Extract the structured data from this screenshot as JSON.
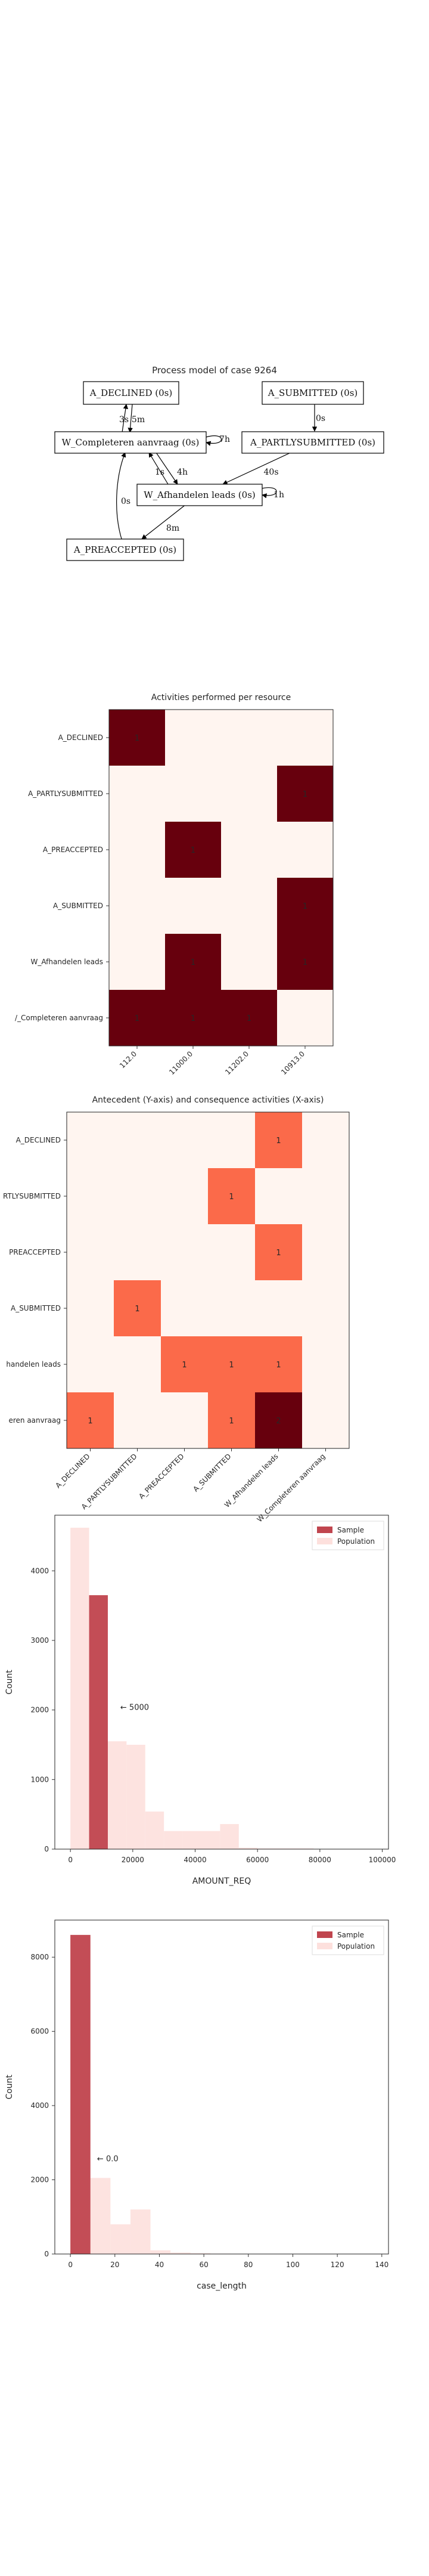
{
  "process_model": {
    "title": "Process model of case 9264",
    "nodes": [
      {
        "id": "declined",
        "label": "A_DECLINED (0s)"
      },
      {
        "id": "submitted",
        "label": "A_SUBMITTED (0s)"
      },
      {
        "id": "completeren",
        "label": "W_Completeren aanvraag (0s)"
      },
      {
        "id": "partly",
        "label": "A_PARTLYSUBMITTED (0s)"
      },
      {
        "id": "afhandelen",
        "label": "W_Afhandelen leads (0s)"
      },
      {
        "id": "preaccepted",
        "label": "A_PREACCEPTED (0s)"
      }
    ],
    "edges": [
      {
        "from": "completeren",
        "to": "declined",
        "label": "3s"
      },
      {
        "from": "declined",
        "to": "completeren",
        "label": "5m"
      },
      {
        "from": "completeren",
        "to": "completeren",
        "label": "7h"
      },
      {
        "from": "submitted",
        "to": "partly",
        "label": "0s"
      },
      {
        "from": "afhandelen",
        "to": "completeren",
        "label": "1s"
      },
      {
        "from": "completeren",
        "to": "afhandelen",
        "label": "4h"
      },
      {
        "from": "partly",
        "to": "afhandelen",
        "label": "40s"
      },
      {
        "from": "afhandelen",
        "to": "afhandelen",
        "label": "1h"
      },
      {
        "from": "preaccepted",
        "to": "completeren",
        "label": "0s"
      },
      {
        "from": "afhandelen",
        "to": "preaccepted",
        "label": "8m"
      }
    ]
  },
  "chart_data": [
    {
      "type": "heatmap",
      "title": "Activities performed per resource",
      "rows": [
        "A_DECLINED",
        "A_PARTLYSUBMITTED",
        "A_PREACCEPTED",
        "A_SUBMITTED",
        "W_Afhandelen leads",
        "W_Completeren aanvraag"
      ],
      "row_labels_visible": [
        "A_DECLINED",
        "A_PARTLYSUBMITTED",
        "A_PREACCEPTED",
        "A_SUBMITTED",
        "W_Afhandelen leads",
        "/_Completeren aanvraag"
      ],
      "columns": [
        "112.0",
        "11000.0",
        "11202.0",
        "10913.0"
      ],
      "values": [
        [
          1,
          0,
          0,
          0
        ],
        [
          0,
          0,
          0,
          1
        ],
        [
          0,
          1,
          0,
          0
        ],
        [
          0,
          0,
          0,
          1
        ],
        [
          0,
          1,
          0,
          1
        ],
        [
          1,
          1,
          1,
          0
        ]
      ],
      "colors": {
        "low": "#fff5f0",
        "mid": "#fb6a4a",
        "high": "#67000d"
      }
    },
    {
      "type": "heatmap",
      "title": "Antecedent (Y-axis) and consequence activities (X-axis)",
      "rows": [
        "A_DECLINED",
        "A_PARTLYSUBMITTED",
        "A_PREACCEPTED",
        "A_SUBMITTED",
        "W_Afhandelen leads",
        "W_Completeren aanvraag"
      ],
      "row_labels_visible": [
        "A_DECLINED",
        "RTLYSUBMITTED",
        "PREACCEPTED",
        "A_SUBMITTED",
        "handelen leads",
        "eren aanvraag"
      ],
      "columns": [
        "A_DECLINED",
        "A_PARTLYSUBMITTED",
        "A_PREACCEPTED",
        "A_SUBMITTED",
        "W_Afhandelen leads",
        "W_Completeren aanvraag"
      ],
      "column_labels_visible": [
        "A_DECLINED",
        "A_PARTLYSUBMITTED",
        "A_PREACCEPTED",
        "A_SUBMITTED",
        "W_Afhandelen leads",
        "W_Completeren aanvraag"
      ],
      "values": [
        [
          0,
          0,
          0,
          0,
          1,
          0
        ],
        [
          0,
          0,
          0,
          1,
          0,
          0
        ],
        [
          0,
          0,
          0,
          0,
          1,
          0
        ],
        [
          0,
          1,
          0,
          0,
          0,
          0
        ],
        [
          0,
          0,
          1,
          1,
          1,
          0
        ],
        [
          1,
          0,
          0,
          1,
          2,
          0
        ]
      ],
      "colors": {
        "low": "#fff5f0",
        "mid": "#fb6a4a",
        "high": "#67000d"
      }
    },
    {
      "type": "bar",
      "xlabel": "AMOUNT_REQ",
      "ylabel": "Count",
      "xlim": [
        -5000,
        102000
      ],
      "ylim": [
        0,
        4800
      ],
      "xticks": [
        0,
        20000,
        40000,
        60000,
        80000,
        100000
      ],
      "yticks": [
        0,
        1000,
        2000,
        3000,
        4000
      ],
      "legend": {
        "position": "top-right",
        "items": [
          "Sample",
          "Population"
        ]
      },
      "annotation": {
        "text": "← 5000",
        "x": 16000,
        "y": 2000
      },
      "series": [
        {
          "name": "Population",
          "color": "#fde0dd",
          "bins": [
            [
              0,
              6000,
              4620
            ],
            [
              6000,
              12000,
              3650
            ],
            [
              12000,
              18000,
              1550
            ],
            [
              18000,
              24000,
              1500
            ],
            [
              24000,
              30000,
              540
            ],
            [
              30000,
              36000,
              260
            ],
            [
              36000,
              42000,
              260
            ],
            [
              42000,
              48000,
              260
            ],
            [
              48000,
              54000,
              360
            ],
            [
              54000,
              60000,
              20
            ],
            [
              60000,
              66000,
              10
            ],
            [
              66000,
              72000,
              10
            ],
            [
              72000,
              78000,
              10
            ]
          ]
        },
        {
          "name": "Sample",
          "color": "#c0454e",
          "bins": [
            [
              6000,
              12000,
              3650
            ]
          ]
        }
      ]
    },
    {
      "type": "bar",
      "xlabel": "case_length",
      "ylabel": "Count",
      "xlim": [
        -7,
        143
      ],
      "ylim": [
        0,
        9000
      ],
      "xticks": [
        0,
        20,
        40,
        60,
        80,
        100,
        120,
        140
      ],
      "yticks": [
        0,
        2000,
        4000,
        6000,
        8000
      ],
      "legend": {
        "position": "top-right",
        "items": [
          "Sample",
          "Population"
        ]
      },
      "annotation": {
        "text": "← 0.0",
        "x": 12,
        "y": 2500
      },
      "series": [
        {
          "name": "Population",
          "color": "#fde0dd",
          "bins": [
            [
              0,
              9,
              8600
            ],
            [
              9,
              18,
              2050
            ],
            [
              18,
              27,
              800
            ],
            [
              27,
              36,
              1200
            ],
            [
              36,
              45,
              100
            ],
            [
              45,
              54,
              40
            ],
            [
              54,
              63,
              20
            ],
            [
              63,
              72,
              10
            ]
          ]
        },
        {
          "name": "Sample",
          "color": "#c0454e",
          "bins": [
            [
              0,
              9,
              8600
            ]
          ]
        }
      ]
    }
  ]
}
